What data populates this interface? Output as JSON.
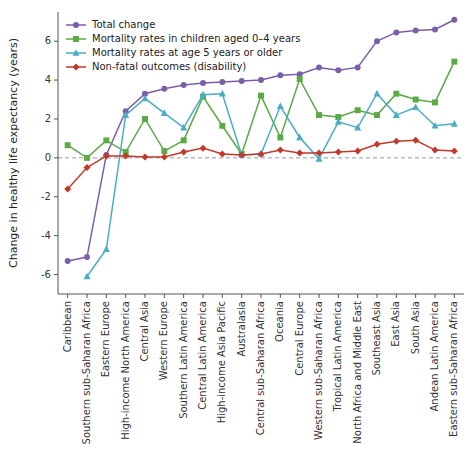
{
  "chart_data": {
    "type": "line",
    "ylabel": "Change in healthy life expectancy (years)",
    "categories": [
      "Caribbean",
      "Southern sub-Saharan Africa",
      "Eastern Europe",
      "High-income North America",
      "Central Asia",
      "Western Europe",
      "Southern Latin America",
      "Central Latin America",
      "High-income Asia Pacific",
      "Australasia",
      "Central sub-Saharan Africa",
      "Oceania",
      "Central Europe",
      "Western sub-Saharan Africa",
      "Tropical Latin America",
      "North Africa and Middle East",
      "Southeast Asia",
      "East Asia",
      "South Asia",
      "Andean Latin America",
      "Eastern sub-Saharan Africa"
    ],
    "series": [
      {
        "name": "Total change",
        "color": "#7b5ea7",
        "marker": "circle",
        "line_style": "solid",
        "values": [
          -5.3,
          -5.1,
          0.15,
          2.4,
          3.3,
          3.55,
          3.75,
          3.85,
          3.9,
          3.95,
          4.0,
          4.25,
          4.3,
          4.65,
          4.5,
          4.65,
          6.0,
          6.45,
          6.55,
          6.6,
          7.1
        ]
      },
      {
        "name": "Mortality rates in children aged 0–4 years",
        "color": "#5aaa45",
        "marker": "square",
        "line_style": "solid",
        "values": [
          0.65,
          0.0,
          0.9,
          0.3,
          2.0,
          0.35,
          0.9,
          3.15,
          1.65,
          0.2,
          3.2,
          1.05,
          4.05,
          2.2,
          2.1,
          2.45,
          2.2,
          3.3,
          3.0,
          2.85,
          4.95
        ]
      },
      {
        "name": "Mortality rates at age 5 years or older",
        "color": "#4bacc6",
        "marker": "triangle",
        "line_style": "solid",
        "values": [
          null,
          -6.1,
          -4.7,
          2.2,
          3.05,
          2.3,
          1.55,
          3.25,
          3.3,
          0.15,
          0.2,
          2.65,
          1.05,
          -0.05,
          1.85,
          1.55,
          3.3,
          2.2,
          2.6,
          1.65,
          1.75
        ]
      },
      {
        "name": "Non-fatal outcomes (disability)",
        "color": "#c0392b",
        "marker": "diamond",
        "line_style": "solid",
        "values": [
          -1.6,
          -0.5,
          0.1,
          0.1,
          0.05,
          0.05,
          0.3,
          0.5,
          0.2,
          0.15,
          0.2,
          0.4,
          0.25,
          0.25,
          0.3,
          0.35,
          0.7,
          0.85,
          0.9,
          0.4,
          0.35
        ]
      }
    ],
    "ylim": [
      -7,
      7.5
    ],
    "yticks": [
      -6,
      -4,
      -2,
      0,
      2,
      4,
      6
    ],
    "legend": "upper left"
  }
}
